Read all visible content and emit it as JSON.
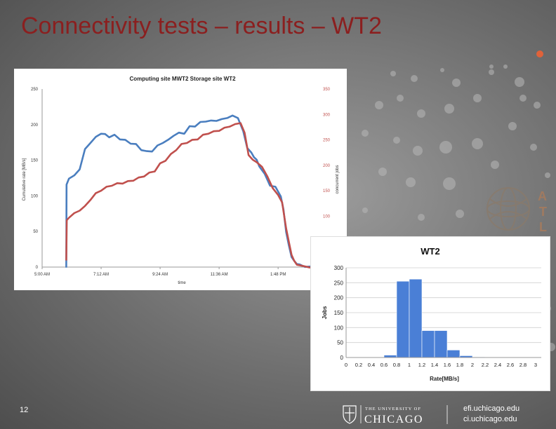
{
  "slide": {
    "title": "Connectivity tests – results – WT2",
    "page_number": "12",
    "footer_links": [
      "efi.uchicago.edu",
      "ci.uchicago.edu"
    ],
    "logo_text_small": "THE UNIVERSITY OF",
    "logo_text_big": "CHICAGO",
    "atlas_letters": [
      "A",
      "T",
      "L"
    ],
    "accent_color": "#8b1f1f"
  },
  "chart_data": [
    {
      "type": "line",
      "title": "Computing site MWT2    Storage site WT2",
      "xlabel": "time",
      "ylabel": "Cumulative rate [MB/s]",
      "y2label": "concurrent jobs",
      "ylim": [
        0,
        250
      ],
      "y2lim": [
        0,
        350
      ],
      "yticks": [
        "0",
        "50",
        "100",
        "150",
        "200",
        "250"
      ],
      "y2ticks": [
        "100",
        "150",
        "200",
        "250",
        "300",
        "350"
      ],
      "xticks": [
        "5:00 AM",
        "7:12 AM",
        "9:24 AM",
        "11:36 AM",
        "1:48 PM"
      ],
      "xrange_hours": [
        5.0,
        15.0
      ],
      "series": [
        {
          "color": "#4a7ebf",
          "axis": "left",
          "x": [
            5.9,
            5.91,
            6.0,
            6.2,
            6.4,
            6.6,
            6.8,
            7.0,
            7.2,
            7.35,
            7.5,
            7.7,
            7.9,
            8.1,
            8.3,
            8.5,
            8.7,
            8.9,
            9.1,
            9.3,
            9.5,
            9.7,
            9.9,
            10.1,
            10.3,
            10.5,
            10.7,
            10.9,
            11.1,
            11.3,
            11.5,
            11.7,
            11.9,
            12.1,
            12.3,
            12.5,
            12.65,
            12.8,
            12.9,
            13.0,
            13.1,
            13.3,
            13.5,
            13.7,
            13.9,
            14.0,
            14.1,
            14.2,
            14.3,
            14.4,
            14.5,
            14.6,
            14.8,
            15.0
          ],
          "y": [
            0,
            115,
            125,
            128,
            138,
            165,
            175,
            182,
            188,
            186,
            183,
            185,
            180,
            178,
            174,
            172,
            165,
            162,
            163,
            170,
            175,
            178,
            185,
            188,
            188,
            197,
            198,
            203,
            205,
            205,
            206,
            207,
            210,
            212,
            210,
            190,
            168,
            160,
            155,
            150,
            142,
            130,
            115,
            112,
            100,
            80,
            50,
            30,
            15,
            8,
            5,
            3,
            1,
            0
          ]
        },
        {
          "color": "#c0504d",
          "axis": "left",
          "x": [
            5.9,
            5.92,
            6.0,
            6.2,
            6.4,
            6.6,
            6.8,
            7.0,
            7.2,
            7.4,
            7.6,
            7.8,
            8.0,
            8.2,
            8.4,
            8.6,
            8.8,
            9.0,
            9.2,
            9.4,
            9.6,
            9.8,
            10.0,
            10.2,
            10.4,
            10.6,
            10.8,
            11.0,
            11.2,
            11.4,
            11.6,
            11.8,
            12.0,
            12.2,
            12.4,
            12.55,
            12.7,
            12.85,
            13.0,
            13.2,
            13.4,
            13.6,
            13.8,
            13.95,
            14.1,
            14.2,
            14.3,
            14.4,
            14.5,
            14.7,
            15.0
          ],
          "y": [
            10,
            65,
            70,
            75,
            80,
            85,
            95,
            103,
            108,
            112,
            115,
            117,
            118,
            120,
            122,
            125,
            128,
            132,
            135,
            145,
            150,
            158,
            165,
            172,
            175,
            178,
            180,
            185,
            188,
            190,
            192,
            195,
            198,
            200,
            203,
            188,
            158,
            150,
            148,
            140,
            128,
            110,
            102,
            90,
            55,
            35,
            18,
            8,
            4,
            1,
            0
          ]
        }
      ]
    },
    {
      "type": "bar",
      "title": "WT2",
      "xlabel": "Rate[MB/s]",
      "ylabel": "Jobs",
      "ylim": [
        0,
        300
      ],
      "yticks": [
        "0",
        "50",
        "100",
        "150",
        "200",
        "250",
        "300"
      ],
      "xticks": [
        "0",
        "0.2",
        "0.4",
        "0.6",
        "0.8",
        "1",
        "1.2",
        "1.4",
        "1.6",
        "1.8",
        "2",
        "2.2",
        "2.4",
        "2.6",
        "2.8",
        "3"
      ],
      "bins_start": [
        0.6,
        0.8,
        1.0,
        1.2,
        1.4,
        1.6,
        1.8,
        2.0
      ],
      "values": [
        8,
        255,
        262,
        90,
        90,
        25,
        6,
        2
      ],
      "color": "#4a7fd6"
    }
  ]
}
